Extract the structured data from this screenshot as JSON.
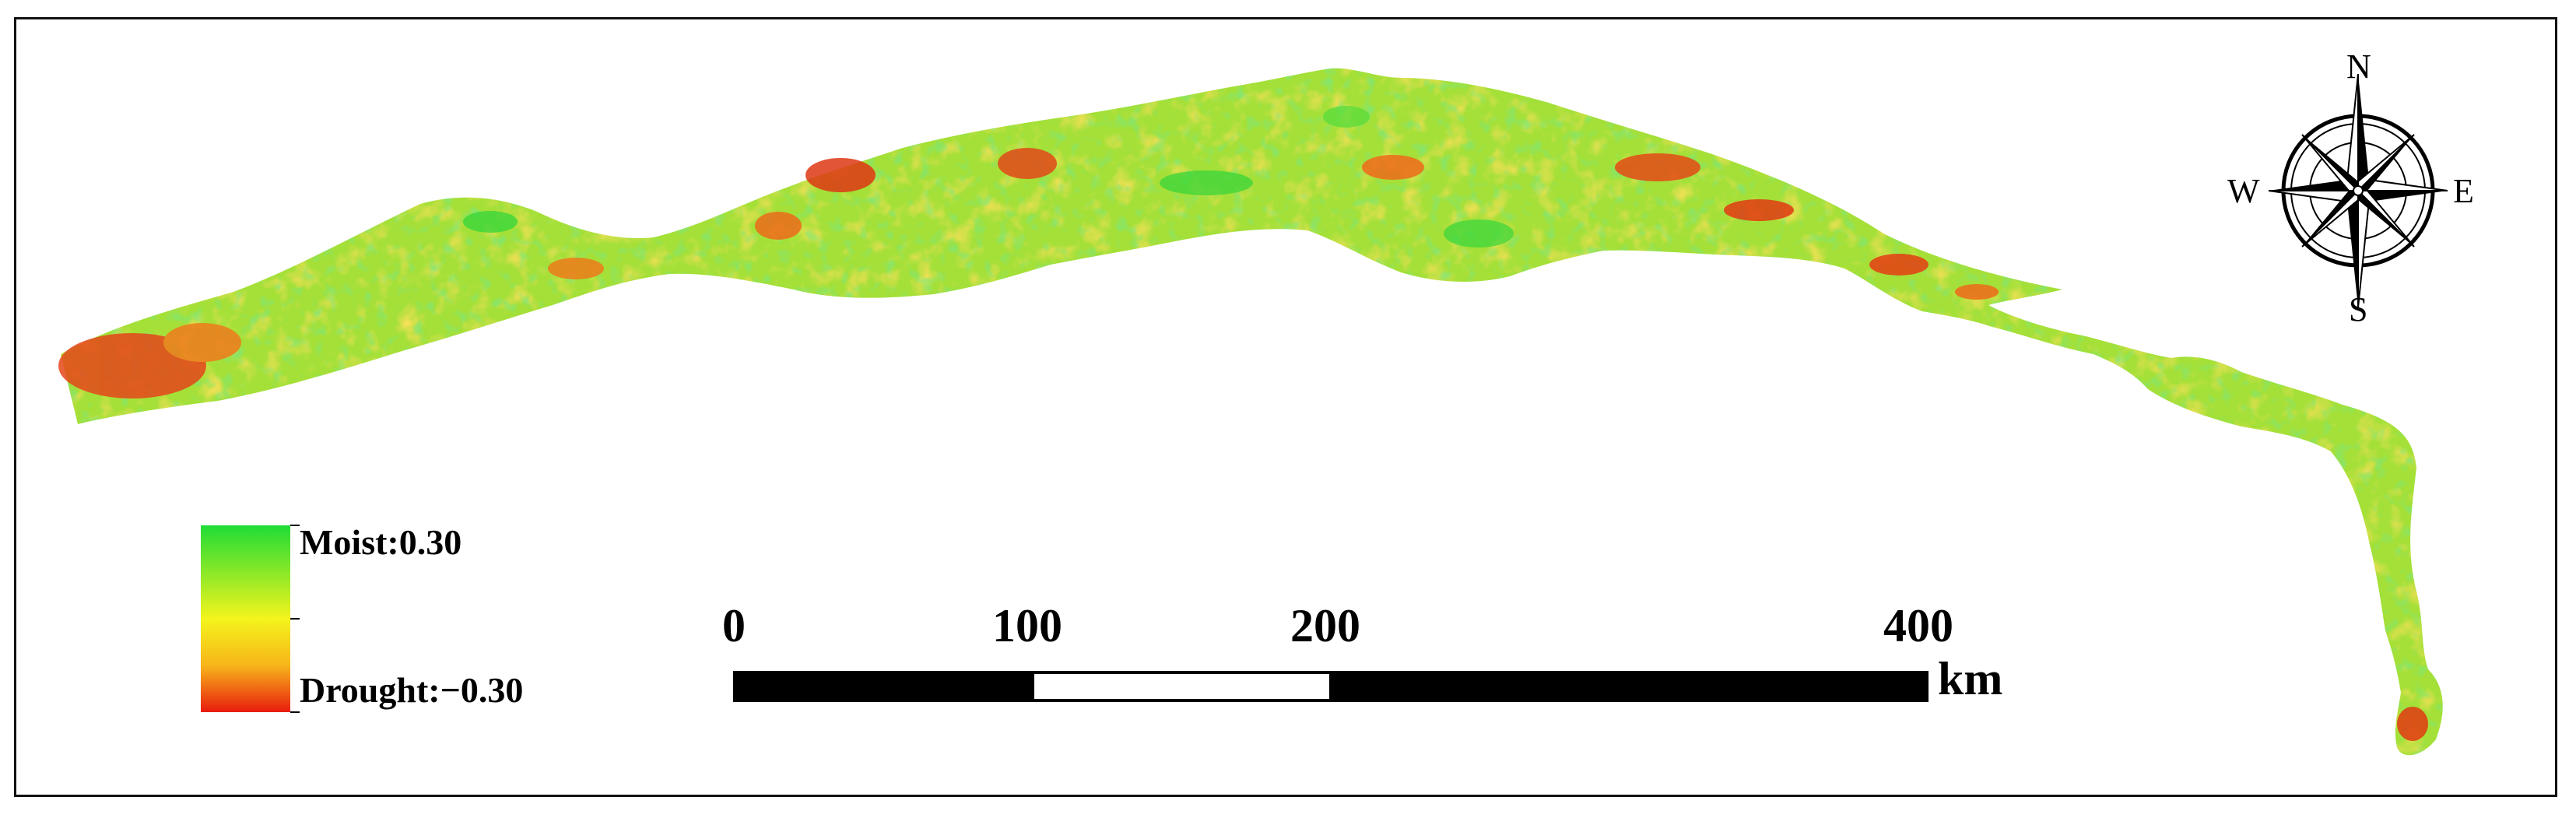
{
  "legend": {
    "max_label": "Moist:0.30",
    "min_label": "Drought:−0.30",
    "colors": {
      "moist": "#22dd33",
      "mid": "#f2f21a",
      "drought": "#e82010"
    }
  },
  "scale_bar": {
    "ticks": [
      "0",
      "100",
      "200",
      "400"
    ],
    "unit": "km"
  },
  "compass": {
    "north": "N",
    "south": "S",
    "east": "E",
    "west": "W",
    "icon": "compass-rose-icon"
  },
  "map": {
    "region": "drought-index-raster",
    "dominant_color": "#9ee33a",
    "hotspot_color": "#e23a12"
  }
}
